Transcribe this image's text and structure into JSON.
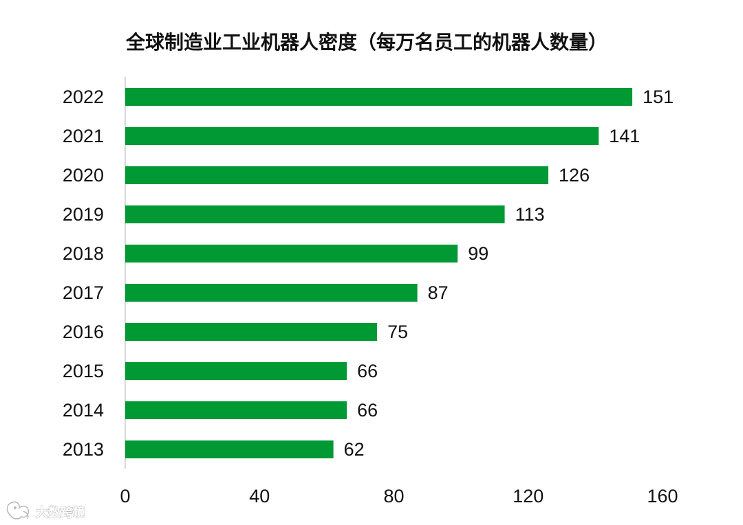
{
  "chart_data": {
    "type": "bar",
    "orientation": "horizontal",
    "title": "全球制造业工业机器人密度（每万名员工的机器人数量）",
    "categories": [
      "2022",
      "2021",
      "2020",
      "2019",
      "2018",
      "2017",
      "2016",
      "2015",
      "2014",
      "2013"
    ],
    "values": [
      151,
      141,
      126,
      113,
      99,
      87,
      75,
      66,
      66,
      62
    ],
    "value_labels": [
      "151",
      "141",
      "126",
      "113",
      "99",
      "87",
      "75",
      "66",
      "66",
      "62"
    ],
    "xlim": [
      0,
      160
    ],
    "x_ticks": [
      0,
      40,
      80,
      120,
      160
    ],
    "x_tick_labels": [
      "0",
      "40",
      "80",
      "120",
      "160"
    ],
    "xlabel": "",
    "ylabel": "",
    "bar_color": "#009933",
    "grid": false,
    "legend": "none"
  },
  "watermark": {
    "text": "大数跨境",
    "icon": "elephant-logo-icon"
  }
}
